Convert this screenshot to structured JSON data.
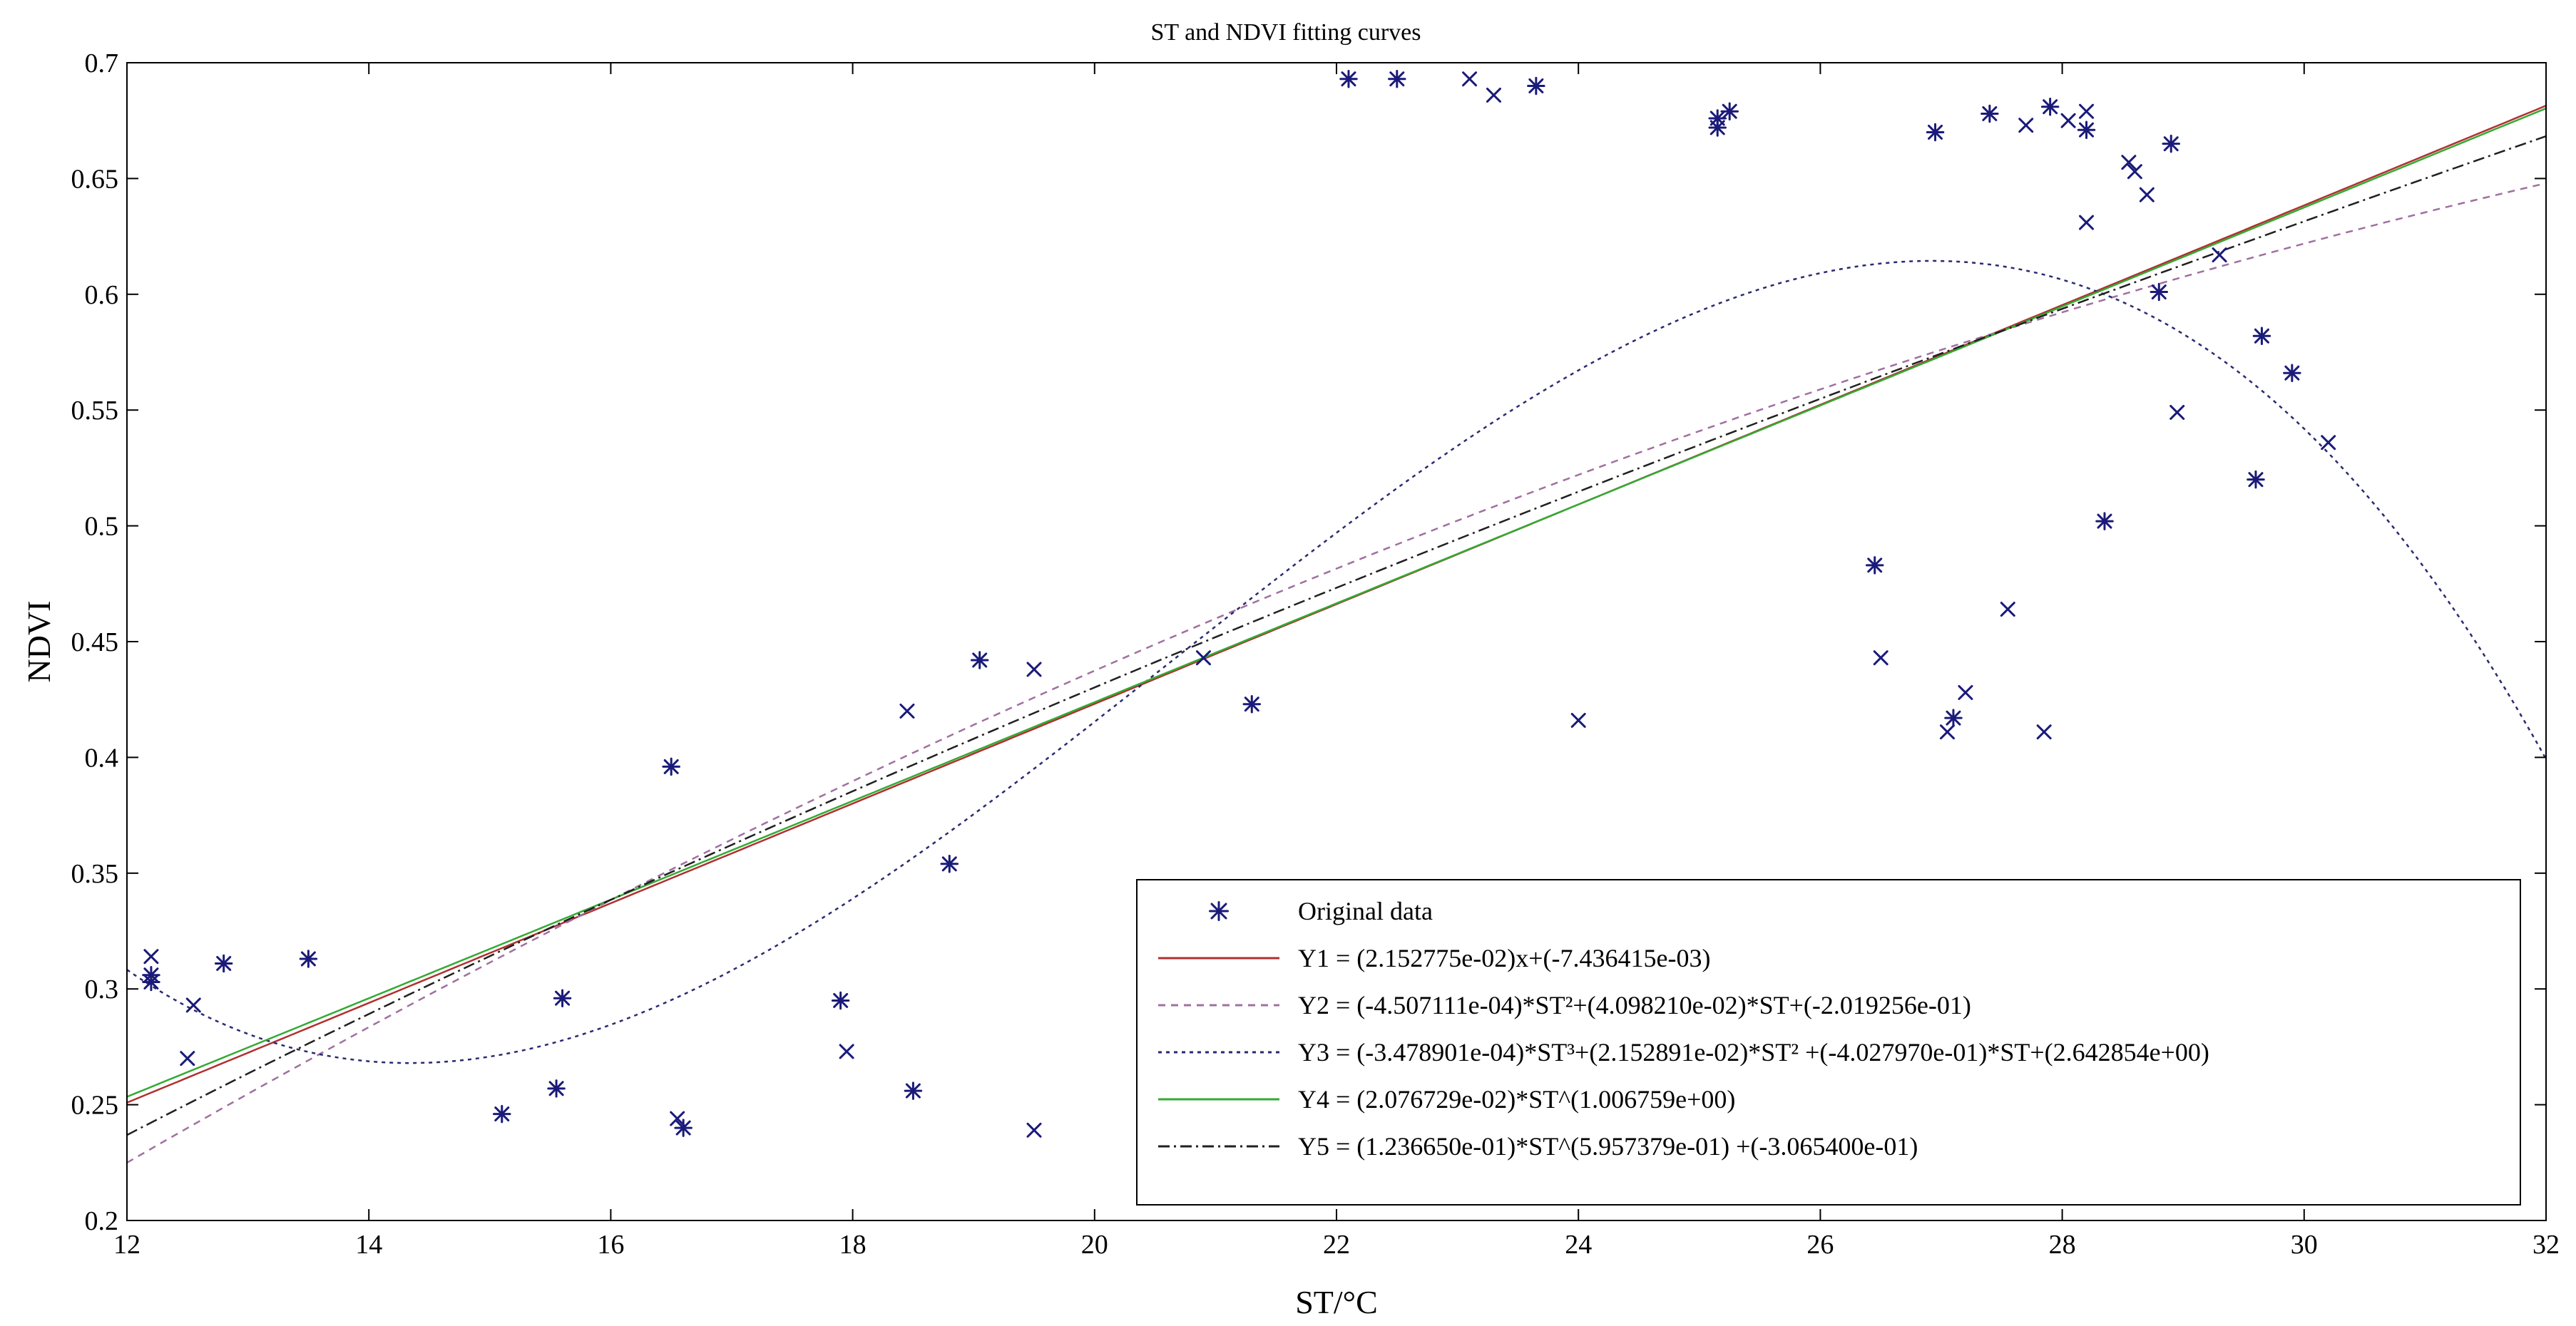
{
  "chart_data": {
    "type": "scatter",
    "title": "ST and NDVI fitting curves",
    "xlabel": "ST/°C",
    "ylabel": "NDVI",
    "xlim": [
      12,
      32
    ],
    "ylim": [
      0.2,
      0.7
    ],
    "xticks": [
      12,
      14,
      16,
      18,
      20,
      22,
      24,
      26,
      28,
      30,
      32
    ],
    "xtick_labels": [
      "12",
      "14",
      "16",
      "18",
      "20",
      "22",
      "24",
      "26",
      "28",
      "30",
      "32"
    ],
    "yticks": [
      0.2,
      0.25,
      0.3,
      0.35,
      0.4,
      0.45,
      0.5,
      0.55,
      0.6,
      0.65,
      0.7
    ],
    "ytick_labels": [
      "0.2",
      "0.25",
      "0.3",
      "0.35",
      "0.4",
      "0.45",
      "0.5",
      "0.55",
      "0.6",
      "0.65",
      "0.7"
    ],
    "grid": false,
    "legend_position": "bottom-right",
    "points": [
      {
        "x": 12.2,
        "y": 0.303,
        "marker": "star"
      },
      {
        "x": 12.2,
        "y": 0.306,
        "marker": "star"
      },
      {
        "x": 12.2,
        "y": 0.314,
        "marker": "x"
      },
      {
        "x": 12.5,
        "y": 0.27,
        "marker": "x"
      },
      {
        "x": 12.55,
        "y": 0.293,
        "marker": "x"
      },
      {
        "x": 12.8,
        "y": 0.311,
        "marker": "star"
      },
      {
        "x": 13.5,
        "y": 0.313,
        "marker": "star"
      },
      {
        "x": 15.1,
        "y": 0.246,
        "marker": "star"
      },
      {
        "x": 15.55,
        "y": 0.257,
        "marker": "star"
      },
      {
        "x": 15.6,
        "y": 0.296,
        "marker": "star"
      },
      {
        "x": 16.5,
        "y": 0.396,
        "marker": "star"
      },
      {
        "x": 16.55,
        "y": 0.244,
        "marker": "x"
      },
      {
        "x": 16.6,
        "y": 0.24,
        "marker": "star"
      },
      {
        "x": 17.9,
        "y": 0.295,
        "marker": "star"
      },
      {
        "x": 17.95,
        "y": 0.273,
        "marker": "x"
      },
      {
        "x": 18.45,
        "y": 0.42,
        "marker": "x"
      },
      {
        "x": 18.5,
        "y": 0.256,
        "marker": "star"
      },
      {
        "x": 18.8,
        "y": 0.354,
        "marker": "star"
      },
      {
        "x": 19.05,
        "y": 0.442,
        "marker": "star"
      },
      {
        "x": 19.5,
        "y": 0.438,
        "marker": "x"
      },
      {
        "x": 19.5,
        "y": 0.239,
        "marker": "x"
      },
      {
        "x": 20.9,
        "y": 0.443,
        "marker": "x"
      },
      {
        "x": 21.3,
        "y": 0.423,
        "marker": "star"
      },
      {
        "x": 22.1,
        "y": 0.693,
        "marker": "star"
      },
      {
        "x": 22.5,
        "y": 0.693,
        "marker": "star"
      },
      {
        "x": 23.1,
        "y": 0.693,
        "marker": "x"
      },
      {
        "x": 23.3,
        "y": 0.686,
        "marker": "x"
      },
      {
        "x": 23.65,
        "y": 0.69,
        "marker": "star"
      },
      {
        "x": 24.0,
        "y": 0.416,
        "marker": "x"
      },
      {
        "x": 25.15,
        "y": 0.672,
        "marker": "star"
      },
      {
        "x": 25.15,
        "y": 0.676,
        "marker": "star"
      },
      {
        "x": 25.25,
        "y": 0.679,
        "marker": "star"
      },
      {
        "x": 26.45,
        "y": 0.483,
        "marker": "star"
      },
      {
        "x": 26.5,
        "y": 0.443,
        "marker": "x"
      },
      {
        "x": 26.95,
        "y": 0.67,
        "marker": "star"
      },
      {
        "x": 27.05,
        "y": 0.411,
        "marker": "x"
      },
      {
        "x": 27.1,
        "y": 0.417,
        "marker": "star"
      },
      {
        "x": 27.2,
        "y": 0.428,
        "marker": "x"
      },
      {
        "x": 27.4,
        "y": 0.678,
        "marker": "star"
      },
      {
        "x": 27.55,
        "y": 0.464,
        "marker": "x"
      },
      {
        "x": 27.7,
        "y": 0.673,
        "marker": "x"
      },
      {
        "x": 27.85,
        "y": 0.411,
        "marker": "x"
      },
      {
        "x": 27.9,
        "y": 0.681,
        "marker": "star"
      },
      {
        "x": 28.05,
        "y": 0.675,
        "marker": "x"
      },
      {
        "x": 28.2,
        "y": 0.671,
        "marker": "star"
      },
      {
        "x": 28.2,
        "y": 0.679,
        "marker": "x"
      },
      {
        "x": 28.2,
        "y": 0.631,
        "marker": "x"
      },
      {
        "x": 28.35,
        "y": 0.502,
        "marker": "star"
      },
      {
        "x": 28.55,
        "y": 0.657,
        "marker": "x"
      },
      {
        "x": 28.6,
        "y": 0.653,
        "marker": "x"
      },
      {
        "x": 28.7,
        "y": 0.643,
        "marker": "x"
      },
      {
        "x": 28.8,
        "y": 0.601,
        "marker": "star"
      },
      {
        "x": 28.9,
        "y": 0.665,
        "marker": "star"
      },
      {
        "x": 28.95,
        "y": 0.549,
        "marker": "x"
      },
      {
        "x": 29.3,
        "y": 0.617,
        "marker": "x"
      },
      {
        "x": 29.6,
        "y": 0.52,
        "marker": "star"
      },
      {
        "x": 29.65,
        "y": 0.582,
        "marker": "star"
      },
      {
        "x": 29.9,
        "y": 0.566,
        "marker": "star"
      },
      {
        "x": 30.2,
        "y": 0.536,
        "marker": "x"
      }
    ],
    "series": [
      {
        "id": "Y1",
        "kind": "linear",
        "a": 0.02152775,
        "b": -0.007436415,
        "color": "#b03030",
        "dash": ""
      },
      {
        "id": "Y2",
        "kind": "quadratic",
        "a": -0.0004507111,
        "b": 0.0409821,
        "c": -0.2019256,
        "color": "#a070a0",
        "dash": "10 8"
      },
      {
        "id": "Y3",
        "kind": "cubic",
        "a": -0.0003478901,
        "b": 0.02152891,
        "c": -0.402797,
        "d": 2.642854,
        "color": "#2a2a70",
        "dash": "5 6"
      },
      {
        "id": "Y4",
        "kind": "power",
        "a": 0.02076729,
        "b": 1.006759,
        "color": "#33aa33",
        "dash": ""
      },
      {
        "id": "Y5",
        "kind": "power_offset",
        "a": 0.123665,
        "b": 0.5957379,
        "c": -0.30654,
        "color": "#202020",
        "dash": "16 6 3 6"
      }
    ],
    "legend": [
      {
        "label": "Original data",
        "kind": "marker",
        "color": "#1a1a7a"
      },
      {
        "label": "Y1 = (2.152775e-02)x+(-7.436415e-03)",
        "kind": "line",
        "color": "#b03030",
        "dash": ""
      },
      {
        "label": "Y2 = (-4.507111e-04)*ST²+(4.098210e-02)*ST+(-2.019256e-01)",
        "kind": "line",
        "color": "#a070a0",
        "dash": "10 8"
      },
      {
        "label": "Y3 = (-3.478901e-04)*ST³+(2.152891e-02)*ST² +(-4.027970e-01)*ST+(2.642854e+00)",
        "kind": "line",
        "color": "#2a2a70",
        "dash": "5 6"
      },
      {
        "label": "Y4 = (2.076729e-02)*ST^(1.006759e+00)",
        "kind": "line",
        "color": "#33aa33",
        "dash": ""
      },
      {
        "label": "Y5 = (1.236650e-01)*ST^(5.957379e-01) +(-3.065400e-01)",
        "kind": "line",
        "color": "#202020",
        "dash": "16 6 3 6"
      }
    ]
  }
}
